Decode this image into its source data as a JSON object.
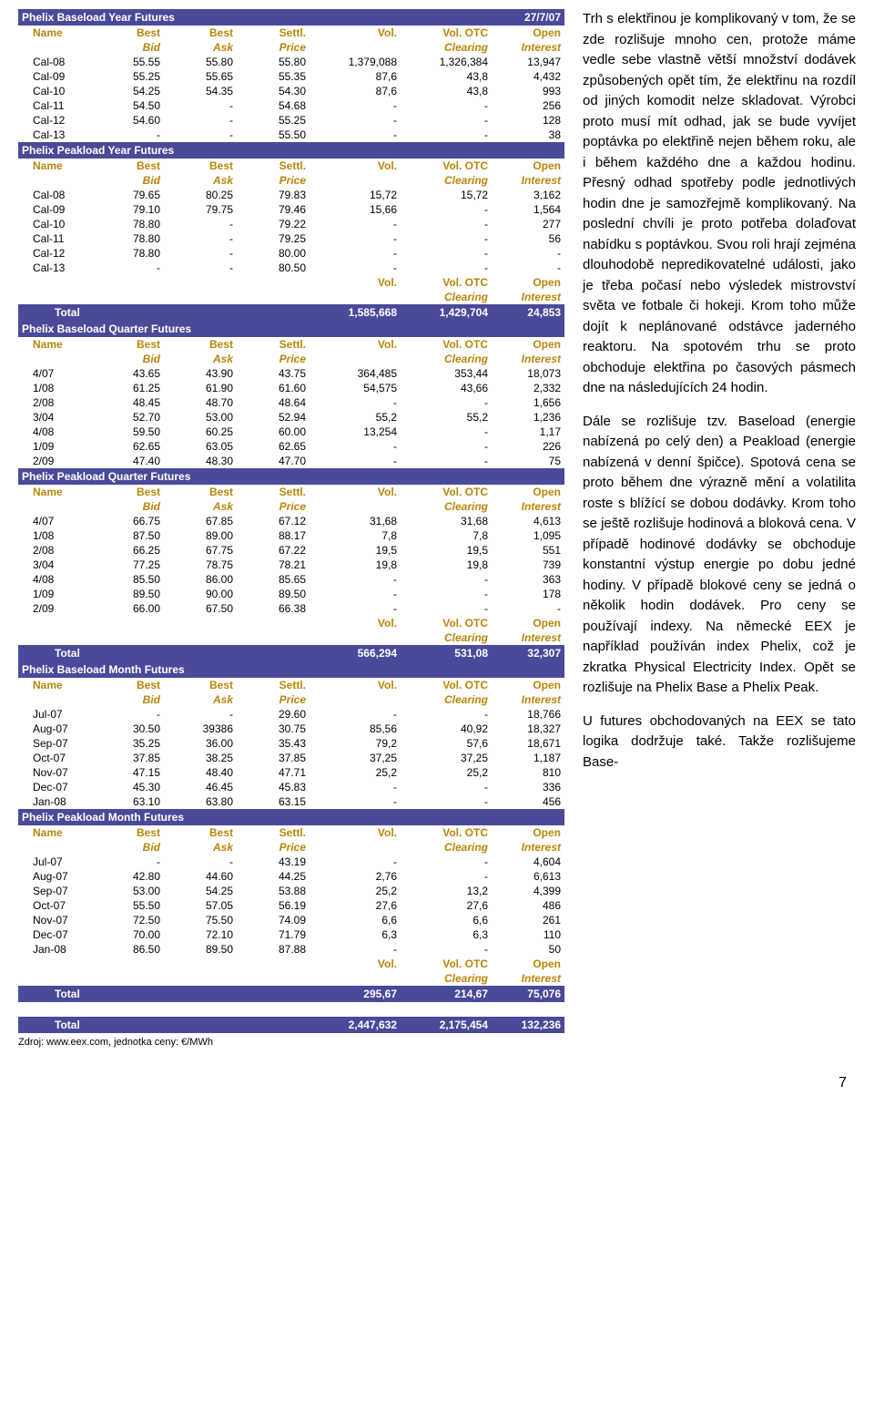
{
  "colors": {
    "section_bg": "#4a4a9a",
    "section_fg": "#ffffff",
    "header_fg": "#b8860b"
  },
  "date_header": "27/7/07",
  "headers": {
    "name": "Name",
    "bid": "Best",
    "ask": "Best",
    "settl": "Settl.",
    "vol": "Vol.",
    "votc": "Vol. OTC",
    "open": "Open",
    "bid2": "Bid",
    "ask2": "Ask",
    "price": "Price",
    "clearing": "Clearing",
    "interest": "Interest"
  },
  "sections": [
    {
      "title": "Phelix Baseload Year Futures",
      "title_right": "27/7/07",
      "rows": [
        [
          "Cal-08",
          "55.55",
          "55.80",
          "55.80",
          "1,379,088",
          "1,326,384",
          "13,947"
        ],
        [
          "Cal-09",
          "55.25",
          "55.65",
          "55.35",
          "87,6",
          "43,8",
          "4,432"
        ],
        [
          "Cal-10",
          "54.25",
          "54.35",
          "54.30",
          "87,6",
          "43,8",
          "993"
        ],
        [
          "Cal-11",
          "54.50",
          "-",
          "54.68",
          "-",
          "-",
          "256"
        ],
        [
          "Cal-12",
          "54.60",
          "-",
          "55.25",
          "-",
          "-",
          "128"
        ],
        [
          "Cal-13",
          "-",
          "-",
          "55.50",
          "-",
          "-",
          "38"
        ]
      ]
    },
    {
      "title": "Phelix Peakload Year Futures",
      "rows": [
        [
          "Cal-08",
          "79.65",
          "80.25",
          "79.83",
          "15,72",
          "15,72",
          "3,162"
        ],
        [
          "Cal-09",
          "79.10",
          "79.75",
          "79.46",
          "15,66",
          "-",
          "1,564"
        ],
        [
          "Cal-10",
          "78.80",
          "-",
          "79.22",
          "-",
          "-",
          "277"
        ],
        [
          "Cal-11",
          "78.80",
          "-",
          "79.25",
          "-",
          "-",
          "56"
        ],
        [
          "Cal-12",
          "78.80",
          "-",
          "80.00",
          "-",
          "-",
          "-"
        ],
        [
          "Cal-13",
          "-",
          "-",
          "80.50",
          "-",
          "-",
          "-"
        ]
      ],
      "subtotal_hdr": true,
      "total": [
        "Total",
        "",
        "",
        "",
        "1,585,668",
        "1,429,704",
        "24,853"
      ]
    },
    {
      "title": "Phelix Baseload Quarter Futures",
      "rows": [
        [
          "4/07",
          "43.65",
          "43.90",
          "43.75",
          "364,485",
          "353,44",
          "18,073"
        ],
        [
          "1/08",
          "61.25",
          "61.90",
          "61.60",
          "54,575",
          "43,66",
          "2,332"
        ],
        [
          "2/08",
          "48.45",
          "48.70",
          "48.64",
          "-",
          "-",
          "1,656"
        ],
        [
          "3/04",
          "52.70",
          "53.00",
          "52.94",
          "55,2",
          "55,2",
          "1,236"
        ],
        [
          "4/08",
          "59.50",
          "60.25",
          "60.00",
          "13,254",
          "-",
          "1,17"
        ],
        [
          "1/09",
          "62.65",
          "63.05",
          "62.65",
          "-",
          "-",
          "226"
        ],
        [
          "2/09",
          "47.40",
          "48.30",
          "47.70",
          "-",
          "-",
          "75"
        ]
      ]
    },
    {
      "title": "Phelix Peakload Quarter Futures",
      "rows": [
        [
          "4/07",
          "66.75",
          "67.85",
          "67.12",
          "31,68",
          "31,68",
          "4,613"
        ],
        [
          "1/08",
          "87.50",
          "89.00",
          "88.17",
          "7,8",
          "7,8",
          "1,095"
        ],
        [
          "2/08",
          "66.25",
          "67.75",
          "67.22",
          "19,5",
          "19,5",
          "551"
        ],
        [
          "3/04",
          "77.25",
          "78.75",
          "78.21",
          "19,8",
          "19,8",
          "739"
        ],
        [
          "4/08",
          "85.50",
          "86.00",
          "85.65",
          "-",
          "-",
          "363"
        ],
        [
          "1/09",
          "89.50",
          "90.00",
          "89.50",
          "-",
          "-",
          "178"
        ],
        [
          "2/09",
          "66.00",
          "67.50",
          "66.38",
          "-",
          "-",
          "-"
        ]
      ],
      "subtotal_hdr": true,
      "total": [
        "Total",
        "",
        "",
        "",
        "566,294",
        "531,08",
        "32,307"
      ]
    },
    {
      "title": "Phelix Baseload Month Futures",
      "rows": [
        [
          "Jul-07",
          "-",
          "-",
          "29.60",
          "-",
          "-",
          "18,766"
        ],
        [
          "Aug-07",
          "30.50",
          "39386",
          "30.75",
          "85,56",
          "40,92",
          "18,327"
        ],
        [
          "Sep-07",
          "35.25",
          "36.00",
          "35.43",
          "79,2",
          "57,6",
          "18,671"
        ],
        [
          "Oct-07",
          "37.85",
          "38.25",
          "37.85",
          "37,25",
          "37,25",
          "1,187"
        ],
        [
          "Nov-07",
          "47.15",
          "48.40",
          "47.71",
          "25,2",
          "25,2",
          "810"
        ],
        [
          "Dec-07",
          "45.30",
          "46.45",
          "45.83",
          "-",
          "-",
          "336"
        ],
        [
          "Jan-08",
          "63.10",
          "63.80",
          "63.15",
          "-",
          "-",
          "456"
        ]
      ]
    },
    {
      "title": "Phelix Peakload Month Futures",
      "rows": [
        [
          "Jul-07",
          "-",
          "-",
          "43.19",
          "-",
          "-",
          "4,604"
        ],
        [
          "Aug-07",
          "42.80",
          "44.60",
          "44.25",
          "2,76",
          "-",
          "6,613"
        ],
        [
          "Sep-07",
          "53.00",
          "54.25",
          "53.88",
          "25,2",
          "13,2",
          "4,399"
        ],
        [
          "Oct-07",
          "55.50",
          "57.05",
          "56.19",
          "27,6",
          "27,6",
          "486"
        ],
        [
          "Nov-07",
          "72.50",
          "75.50",
          "74.09",
          "6,6",
          "6,6",
          "261"
        ],
        [
          "Dec-07",
          "70.00",
          "72.10",
          "71.79",
          "6,3",
          "6,3",
          "110"
        ],
        [
          "Jan-08",
          "86.50",
          "89.50",
          "87.88",
          "-",
          "-",
          "50"
        ]
      ],
      "subtotal_hdr": true,
      "total": [
        "Total",
        "",
        "",
        "",
        "295,67",
        "214,67",
        "75,076"
      ]
    }
  ],
  "grand_total": [
    "Total",
    "",
    "",
    "",
    "2,447,632",
    "2,175,454",
    "132,236"
  ],
  "source": "Zdroj: www.eex.com, jednotka ceny: €/MWh",
  "article": {
    "p1": "Trh s elektřinou je komplikovaný v tom, že se zde rozlišuje mnoho cen, protože máme vedle sebe vlastně větší množství dodávek způsobených opět tím, že elektřinu na rozdíl od jiných komodit nelze skladovat. Výrobci proto musí mít odhad, jak se bude vyvíjet poptávka po elektřině nejen během roku, ale i během každého dne a každou hodinu. Přesný odhad spotřeby podle jednotlivých hodin dne je samozřejmě komplikovaný. Na poslední chvíli je proto potřeba dolaďovat nabídku s poptávkou. Svou roli hrají zejména dlouhodobě nepredikovatelné události, jako je třeba počasí nebo výsledek mistrovství světa ve fotbale či hokeji. Krom toho může dojít k neplánované odstávce jaderného reaktoru. Na spotovém trhu se proto obchoduje elektřina po časových pásmech dne na následujících 24 hodin.",
    "p2": "Dále se rozlišuje tzv. Baseload (energie nabízená po celý den) a Peakload (energie nabízená v denní špičce). Spotová cena se proto během dne výrazně mění a volatilita roste s blížící se dobou dodávky. Krom toho se ještě rozlišuje hodinová a bloková cena. V případě hodinové dodávky se obchoduje konstantní výstup energie po dobu jedné hodiny. V případě blokové ceny se jedná o několik hodin dodávek. Pro ceny se používají indexy. Na německé EEX je například používán index Phelix, což je zkratka Physical Electricity Index. Opět se rozlišuje na Phelix Base a Phelix Peak.",
    "p3": "U futures obchodovaných na EEX se tato logika dodržuje také. Takže rozlišujeme Base-"
  },
  "pagenum": "7"
}
